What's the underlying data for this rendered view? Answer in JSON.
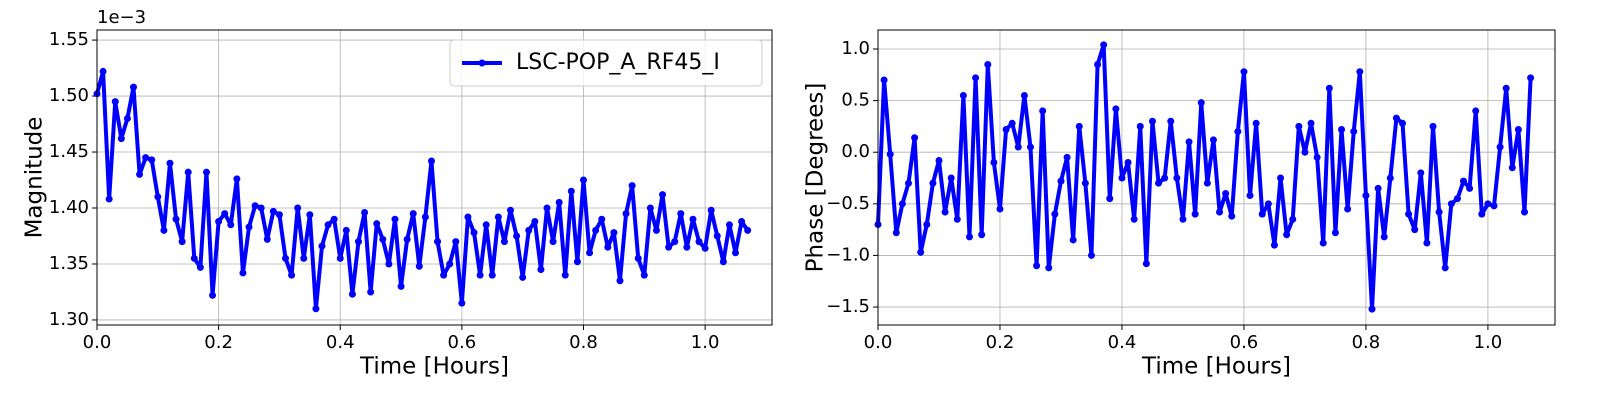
{
  "chart_data": [
    {
      "type": "line",
      "xlabel": "Time [Hours]",
      "ylabel": "Magnitude",
      "y_offset_label": "1e−3",
      "x": [
        0,
        0.01,
        0.02,
        0.03,
        0.04,
        0.05,
        0.06,
        0.07,
        0.08,
        0.09,
        0.1,
        0.11,
        0.12,
        0.13,
        0.14,
        0.15,
        0.16,
        0.17,
        0.18,
        0.19,
        0.2,
        0.21,
        0.22,
        0.23,
        0.24,
        0.25,
        0.26,
        0.27,
        0.28,
        0.29,
        0.3,
        0.31,
        0.32,
        0.33,
        0.34,
        0.35,
        0.36,
        0.37,
        0.38,
        0.39,
        0.4,
        0.41,
        0.42,
        0.43,
        0.44,
        0.45,
        0.46,
        0.47,
        0.48,
        0.49,
        0.5,
        0.51,
        0.52,
        0.53,
        0.54,
        0.55,
        0.56,
        0.57,
        0.58,
        0.59,
        0.6,
        0.61,
        0.62,
        0.63,
        0.64,
        0.65,
        0.66,
        0.67,
        0.68,
        0.69,
        0.7,
        0.71,
        0.72,
        0.73,
        0.74,
        0.75,
        0.76,
        0.77,
        0.78,
        0.79,
        0.8,
        0.81,
        0.82,
        0.83,
        0.84,
        0.85,
        0.86,
        0.87,
        0.88,
        0.89,
        0.9,
        0.91,
        0.92,
        0.93,
        0.94,
        0.95,
        0.96,
        0.97,
        0.98,
        0.99,
        1,
        1.01,
        1.02,
        1.03,
        1.04,
        1.05,
        1.06,
        1.07
      ],
      "series": [
        {
          "name": "LSC-POP_A_RF45_I",
          "color": "#0000ff",
          "values": [
            1.502,
            1.522,
            1.408,
            1.495,
            1.462,
            1.48,
            1.508,
            1.43,
            1.445,
            1.443,
            1.41,
            1.38,
            1.44,
            1.39,
            1.37,
            1.432,
            1.355,
            1.347,
            1.432,
            1.322,
            1.388,
            1.395,
            1.385,
            1.426,
            1.342,
            1.383,
            1.402,
            1.4,
            1.372,
            1.397,
            1.394,
            1.355,
            1.34,
            1.4,
            1.355,
            1.394,
            1.31,
            1.366,
            1.385,
            1.39,
            1.355,
            1.38,
            1.323,
            1.37,
            1.396,
            1.325,
            1.386,
            1.372,
            1.35,
            1.39,
            1.33,
            1.372,
            1.395,
            1.348,
            1.392,
            1.442,
            1.37,
            1.34,
            1.35,
            1.37,
            1.315,
            1.392,
            1.378,
            1.34,
            1.385,
            1.34,
            1.392,
            1.37,
            1.398,
            1.375,
            1.338,
            1.38,
            1.388,
            1.345,
            1.4,
            1.37,
            1.405,
            1.34,
            1.415,
            1.352,
            1.425,
            1.36,
            1.38,
            1.39,
            1.365,
            1.378,
            1.335,
            1.395,
            1.42,
            1.355,
            1.34,
            1.4,
            1.38,
            1.412,
            1.365,
            1.37,
            1.395,
            1.365,
            1.39,
            1.37,
            1.364,
            1.398,
            1.375,
            1.352,
            1.385,
            1.36,
            1.388,
            1.38
          ]
        }
      ],
      "xlim": [
        0,
        1.11
      ],
      "ylim": [
        1.2955,
        1.559
      ],
      "xticks": [
        {
          "value": 0,
          "label": "0.0"
        },
        0.2,
        0.4,
        0.6,
        0.8,
        {
          "value": 1,
          "label": "1.0"
        }
      ],
      "yticks": [
        {
          "value": 1.3,
          "label": "1.30"
        },
        1.35,
        {
          "value": 1.4,
          "label": "1.40"
        },
        1.45,
        {
          "value": 1.5,
          "label": "1.50"
        },
        1.55
      ],
      "grid": true,
      "legend": "upper right"
    },
    {
      "type": "line",
      "xlabel": "Time [Hours]",
      "ylabel": "Phase [Degrees]",
      "x": [
        0,
        0.01,
        0.02,
        0.03,
        0.04,
        0.05,
        0.06,
        0.07,
        0.08,
        0.09,
        0.1,
        0.11,
        0.12,
        0.13,
        0.14,
        0.15,
        0.16,
        0.17,
        0.18,
        0.19,
        0.2,
        0.21,
        0.22,
        0.23,
        0.24,
        0.25,
        0.26,
        0.27,
        0.28,
        0.29,
        0.3,
        0.31,
        0.32,
        0.33,
        0.34,
        0.35,
        0.36,
        0.37,
        0.38,
        0.39,
        0.4,
        0.41,
        0.42,
        0.43,
        0.44,
        0.45,
        0.46,
        0.47,
        0.48,
        0.49,
        0.5,
        0.51,
        0.52,
        0.53,
        0.54,
        0.55,
        0.56,
        0.57,
        0.58,
        0.59,
        0.6,
        0.61,
        0.62,
        0.63,
        0.64,
        0.65,
        0.66,
        0.67,
        0.68,
        0.69,
        0.7,
        0.71,
        0.72,
        0.73,
        0.74,
        0.75,
        0.76,
        0.77,
        0.78,
        0.79,
        0.8,
        0.81,
        0.82,
        0.83,
        0.84,
        0.85,
        0.86,
        0.87,
        0.88,
        0.89,
        0.9,
        0.91,
        0.92,
        0.93,
        0.94,
        0.95,
        0.96,
        0.97,
        0.98,
        0.99,
        1,
        1.01,
        1.02,
        1.03,
        1.04,
        1.05,
        1.06,
        1.07
      ],
      "series": [
        {
          "color": "#0000ff",
          "values": [
            -0.7,
            0.7,
            -0.02,
            -0.78,
            -0.5,
            -0.3,
            0.14,
            -0.97,
            -0.7,
            -0.3,
            -0.08,
            -0.58,
            -0.25,
            -0.65,
            0.55,
            -0.82,
            0.72,
            -0.8,
            0.85,
            -0.1,
            -0.55,
            0.22,
            0.28,
            0.05,
            0.55,
            0.05,
            -1.1,
            0.4,
            -1.12,
            -0.6,
            -0.28,
            -0.05,
            -0.85,
            0.25,
            -0.3,
            -1.0,
            0.85,
            1.04,
            -0.45,
            0.42,
            -0.25,
            -0.1,
            -0.65,
            0.25,
            -1.08,
            0.3,
            -0.3,
            -0.25,
            0.3,
            -0.25,
            -0.65,
            0.1,
            -0.6,
            0.48,
            -0.3,
            0.12,
            -0.58,
            -0.4,
            -0.62,
            0.2,
            0.78,
            -0.42,
            0.28,
            -0.6,
            -0.5,
            -0.9,
            -0.25,
            -0.8,
            -0.65,
            0.25,
            0.0,
            0.28,
            -0.05,
            -0.88,
            0.62,
            -0.78,
            0.22,
            -0.55,
            0.2,
            0.78,
            -0.42,
            -1.52,
            -0.35,
            -0.82,
            -0.25,
            0.33,
            0.28,
            -0.6,
            -0.75,
            -0.2,
            -0.88,
            0.25,
            -0.58,
            -1.12,
            -0.5,
            -0.45,
            -0.28,
            -0.35,
            0.4,
            -0.6,
            -0.5,
            -0.52,
            0.05,
            0.62,
            -0.15,
            0.22,
            -0.58,
            0.72
          ]
        }
      ],
      "xlim": [
        0,
        1.11
      ],
      "ylim": [
        -1.674,
        1.184
      ],
      "xticks": [
        {
          "value": 0,
          "label": "0.0"
        },
        0.2,
        0.4,
        0.6,
        0.8,
        {
          "value": 1,
          "label": "1.0"
        }
      ],
      "yticks": [
        {
          "value": -1.5,
          "label": "−1.5"
        },
        {
          "value": -1,
          "label": "−1.0"
        },
        {
          "value": -0.5,
          "label": "−0.5"
        },
        {
          "value": 0,
          "label": "0.0"
        },
        0.5,
        {
          "value": 1,
          "label": "1.0"
        }
      ],
      "grid": true
    }
  ]
}
